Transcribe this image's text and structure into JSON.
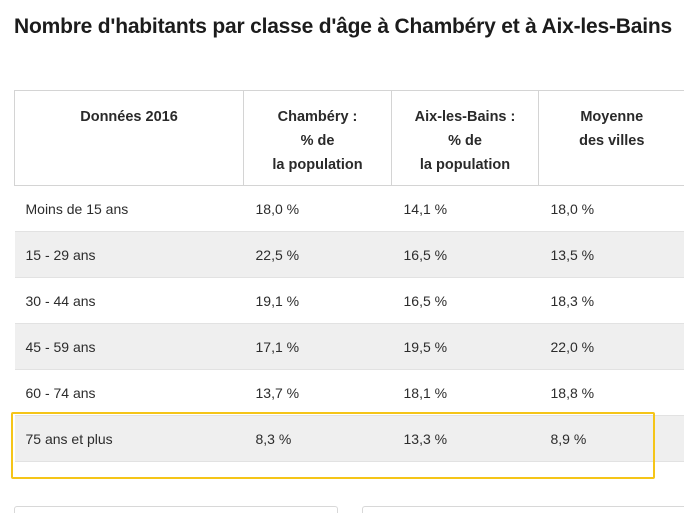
{
  "title": "Nombre d'habitants par classe d'âge à Chambéry et à Aix-les-Bains",
  "table": {
    "headers": [
      [
        "Données 2016"
      ],
      [
        "Chambéry :",
        "% de",
        "la population"
      ],
      [
        "Aix-les-Bains :",
        "% de",
        "la population"
      ],
      [
        "Moyenne",
        "des villes"
      ]
    ],
    "rows": [
      [
        "Moins de 15 ans",
        "18,0 %",
        "14,1 %",
        "18,0 %"
      ],
      [
        "15 - 29 ans",
        "22,5 %",
        "16,5 %",
        "13,5 %"
      ],
      [
        "30 - 44 ans",
        "19,1 %",
        "16,5 %",
        "18,3 %"
      ],
      [
        "45 - 59 ans",
        "17,1 %",
        "19,5 %",
        "22,0 %"
      ],
      [
        "60 - 74 ans",
        "13,7 %",
        "18,1 %",
        "18,8 %"
      ],
      [
        "75 ans et plus",
        "8,3 %",
        "13,3 %",
        "8,9 %"
      ]
    ],
    "highlighted_row": 5
  },
  "colors": {
    "highlight": "#f5c518",
    "stripe": "#efefef",
    "text": "#222222"
  }
}
